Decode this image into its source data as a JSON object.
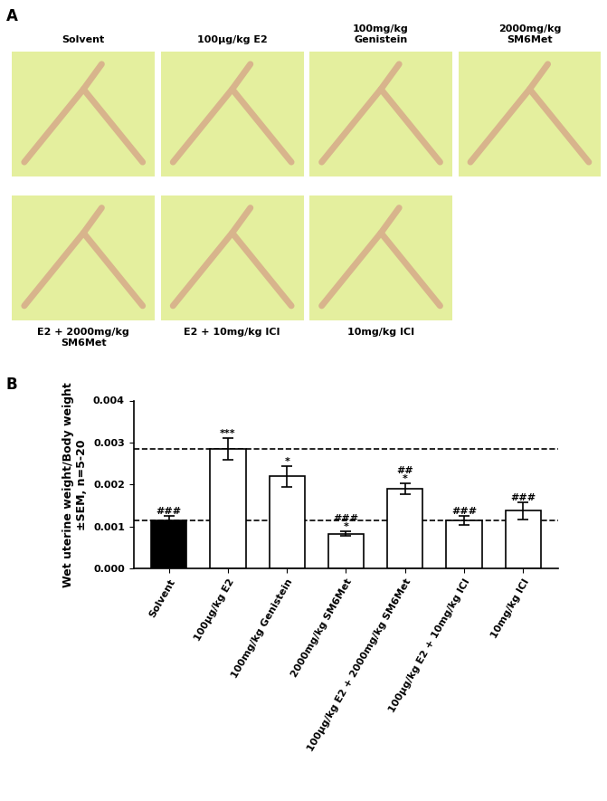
{
  "panel_a": {
    "label": "A",
    "captions": [
      "Solvent",
      "100µg/kg E2",
      "100mg/kg\nGenistein",
      "2000mg/kg\nSM6Met",
      "E2 + 2000mg/kg\nSM6Met",
      "E2 + 10mg/kg ICI",
      "10mg/kg ICI"
    ]
  },
  "chart_data": {
    "type": "bar",
    "panel_label": "B",
    "y_label": "Wet uterine weight/Body weight\n±SEM, n=5-20",
    "categories": [
      "Solvent",
      "100µg/kg E2",
      "100mg/kg Genistein",
      "2000mg/kg SM6Met",
      "100µg/kg E2 + 2000mg/kg SM6Met",
      "100µg/kg E2 + 10mg/kg ICI",
      "10mg/kg ICI"
    ],
    "values": [
      0.00115,
      0.00285,
      0.0022,
      0.00083,
      0.0019,
      0.00115,
      0.00138
    ],
    "errors": [
      0.0001,
      0.00025,
      0.00025,
      5e-05,
      0.00013,
      0.0001,
      0.0002
    ],
    "significance": [
      "###",
      "***",
      "*",
      "###\n*",
      "##\n*",
      "###",
      "###"
    ],
    "reference_lines": [
      0.00115,
      0.00285
    ],
    "colors": [
      "#000000",
      "#ffffff",
      "#ffffff",
      "#ffffff",
      "#ffffff",
      "#ffffff",
      "#ffffff"
    ],
    "ylim": [
      0,
      0.004
    ],
    "yticks": [
      {
        "value": 0,
        "label": "0.000"
      },
      {
        "value": 0.001,
        "label": "0.001"
      },
      {
        "value": 0.002,
        "label": "0.002"
      },
      {
        "value": 0.003,
        "label": "0.003"
      },
      {
        "value": 0.004,
        "label": "0.004"
      }
    ],
    "grid": false
  }
}
